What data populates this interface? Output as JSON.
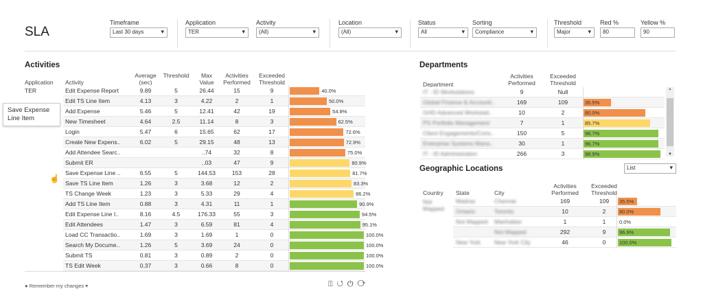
{
  "header": {
    "title": "SLA"
  },
  "filters": {
    "timeframe": {
      "label": "Timeframe",
      "value": "Last 30 days"
    },
    "application": {
      "label": "Application",
      "value": "TER"
    },
    "activity": {
      "label": "Activity",
      "value": "(All)"
    },
    "location": {
      "label": "Location",
      "value": "(All)"
    },
    "status": {
      "label": "Status",
      "value": "All"
    },
    "sorting": {
      "label": "Sorting",
      "value": "Compliance"
    },
    "threshold": {
      "label": "Threshold",
      "value": "Major"
    },
    "red": {
      "label": "Red %",
      "value": "80"
    },
    "yellow": {
      "label": "Yellow %",
      "value": "90"
    }
  },
  "colors": {
    "orange": "#f0904a",
    "yellow": "#fdd868",
    "green": "#8bc34a"
  },
  "activities": {
    "title": "Activities",
    "headers": [
      "Application",
      "Activity",
      "Average (sec)",
      "Threshold",
      "Max Value",
      "Activities Performed",
      "Exceeded Threshold"
    ],
    "application": "TER",
    "rows": [
      [
        "Edit Expense Report",
        "9.89",
        "5",
        "26.44",
        "15",
        "9",
        "40.0%",
        40,
        "orange"
      ],
      [
        "Edit TS Line Item",
        "4.13",
        "3",
        "4.22",
        "2",
        "1",
        "50.0%",
        50,
        "orange"
      ],
      [
        "Add Expense",
        "5.46",
        "5",
        "12.41",
        "42",
        "19",
        "54.8%",
        54.8,
        "orange"
      ],
      [
        "New Timesheet",
        "4.64",
        "2.5",
        "11.14",
        "8",
        "3",
        "62.5%",
        62.5,
        "orange"
      ],
      [
        "Login",
        "5.47",
        "6",
        "15.65",
        "62",
        "17",
        "72.6%",
        72.6,
        "orange"
      ],
      [
        "Create New Expens..",
        "6.02",
        "5",
        "29.15",
        "48",
        "13",
        "72.9%",
        72.9,
        "orange"
      ],
      [
        "Add Attendee Searc..",
        "",
        "",
        "..74",
        "32",
        "8",
        "75.0%",
        75,
        "orange"
      ],
      [
        "Submit ER",
        "",
        "",
        "..03",
        "47",
        "9",
        "80.9%",
        80.9,
        "yellow"
      ],
      [
        "Save Expense Line ..",
        "6.55",
        "5",
        "144.53",
        "153",
        "28",
        "81.7%",
        81.7,
        "yellow"
      ],
      [
        "Save TS Line Item",
        "1.26",
        "3",
        "3.68",
        "12",
        "2",
        "83.3%",
        83.3,
        "yellow"
      ],
      [
        "TS Change Week",
        "1.23",
        "3",
        "5.33",
        "29",
        "4",
        "86.2%",
        86.2,
        "yellow"
      ],
      [
        "Add TS Line Item",
        "0.88",
        "3",
        "4.31",
        "11",
        "1",
        "90.9%",
        90.9,
        "green"
      ],
      [
        "Edit Expense Line I..",
        "8.16",
        "4.5",
        "176.33",
        "55",
        "3",
        "94.5%",
        94.5,
        "green"
      ],
      [
        "Edit Attendees",
        "1.47",
        "3",
        "6.59",
        "81",
        "4",
        "95.1%",
        95.1,
        "green"
      ],
      [
        "Load CC Transactio..",
        "1.69",
        "3",
        "1.69",
        "1",
        "0",
        "100.0%",
        100,
        "green"
      ],
      [
        "Search My Docume..",
        "1.26",
        "5",
        "3.69",
        "24",
        "0",
        "100.0%",
        100,
        "green"
      ],
      [
        "Submit TS",
        "0.81",
        "3",
        "0.89",
        "2",
        "0",
        "100.0%",
        100,
        "green"
      ],
      [
        "TS Edit Week",
        "0.37",
        "3",
        "0.66",
        "8",
        "0",
        "100.0%",
        100,
        "green"
      ]
    ],
    "tooltip": "Save Expense Line Item"
  },
  "departments": {
    "title": "Departments",
    "headers": [
      "Department",
      "Activities Performed",
      "Exceeded Threshold"
    ],
    "rows": [
      [
        "IT - ID Workstations",
        "9",
        "Null",
        "",
        0,
        ""
      ],
      [
        "Global Finance & Accounti..",
        "169",
        "109",
        "35.5%",
        35.5,
        "orange"
      ],
      [
        "GHD Advanced Workstati..",
        "10",
        "2",
        "80.0%",
        80,
        "orange"
      ],
      [
        "PS Portfolio Management",
        "7",
        "1",
        "85.7%",
        85.7,
        "yellow"
      ],
      [
        "Client Engagements/Cons..",
        "150",
        "5",
        "96.7%",
        96.7,
        "green"
      ],
      [
        "Enterprise Systems Mana..",
        "30",
        "1",
        "96.7%",
        96.7,
        "green"
      ],
      [
        "IT - ID Administration",
        "266",
        "3",
        "98.9%",
        98.9,
        "green"
      ]
    ]
  },
  "geo": {
    "title": "Geographic Locations",
    "view": "List",
    "headers": [
      "Country",
      "State",
      "City",
      "Activities Performed",
      "Exceeded Threshold"
    ],
    "country": "Not Mapped",
    "rows": [
      [
        "Madras",
        "Chennai",
        "169",
        "109",
        "35.5%",
        35.5,
        "orange"
      ],
      [
        "Ontario",
        "Toronto",
        "10",
        "2",
        "80.0%",
        80,
        "orange"
      ],
      [
        "Not Mapped",
        "Manhattan",
        "1",
        "1",
        "0.0%",
        0,
        ""
      ],
      [
        "",
        "Not Mapped",
        "292",
        "9",
        "96.9%",
        96.9,
        "green"
      ],
      [
        "New York",
        "New York City",
        "46",
        "0",
        "100.0%",
        100,
        "green"
      ]
    ]
  },
  "footer": {
    "remember": "Remember my changes"
  }
}
